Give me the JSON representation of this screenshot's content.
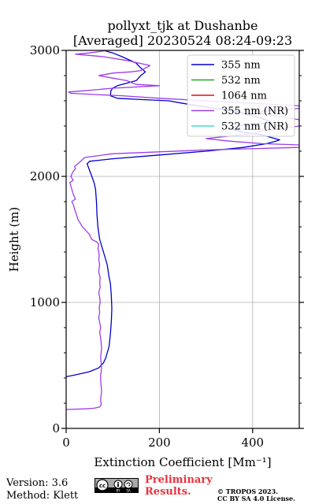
{
  "chart_data": {
    "type": "line",
    "title": "pollyxt_tjk at Dushanbe",
    "subtitle": "[Averaged] 20230524 08:24-09:23",
    "xlabel": "Extinction Coefficient [Mm⁻¹]",
    "ylabel": "Height (m)",
    "xlim": [
      0,
      500
    ],
    "ylim": [
      0,
      3000
    ],
    "xticks": [
      0,
      200,
      400
    ],
    "yticks": [
      0,
      1000,
      2000,
      3000
    ],
    "grid": true,
    "legend_position": "top-right",
    "series": [
      {
        "name": "355 nm",
        "color": "#0000cc",
        "points": [
          [
            0,
            410
          ],
          [
            20,
            425
          ],
          [
            50,
            450
          ],
          [
            70,
            480
          ],
          [
            80,
            520
          ],
          [
            85,
            560
          ],
          [
            88,
            600
          ],
          [
            92,
            650
          ],
          [
            95,
            750
          ],
          [
            97,
            850
          ],
          [
            98,
            950
          ],
          [
            97,
            1050
          ],
          [
            95,
            1150
          ],
          [
            92,
            1200
          ],
          [
            88,
            1300
          ],
          [
            80,
            1400
          ],
          [
            72,
            1500
          ],
          [
            68,
            1600
          ],
          [
            66,
            1700
          ],
          [
            65,
            1800
          ],
          [
            63,
            1900
          ],
          [
            60,
            1950
          ],
          [
            55,
            2000
          ],
          [
            50,
            2050
          ],
          [
            45,
            2100
          ],
          [
            50,
            2120
          ],
          [
            100,
            2140
          ],
          [
            200,
            2170
          ],
          [
            300,
            2200
          ],
          [
            380,
            2230
          ],
          [
            430,
            2260
          ],
          [
            450,
            2280
          ],
          [
            458,
            2290
          ],
          [
            420,
            2330
          ],
          [
            380,
            2350
          ],
          [
            350,
            2380
          ],
          [
            380,
            2410
          ],
          [
            420,
            2420
          ],
          [
            440,
            2430
          ],
          [
            420,
            2460
          ],
          [
            380,
            2500
          ],
          [
            360,
            2520
          ],
          [
            300,
            2550
          ],
          [
            250,
            2580
          ],
          [
            220,
            2600
          ],
          [
            160,
            2610
          ],
          [
            110,
            2620
          ],
          [
            95,
            2640
          ],
          [
            96,
            2680
          ],
          [
            100,
            2700
          ],
          [
            110,
            2720
          ],
          [
            130,
            2740
          ],
          [
            150,
            2760
          ],
          [
            160,
            2800
          ],
          [
            170,
            2830
          ],
          [
            160,
            2860
          ],
          [
            150,
            2900
          ],
          [
            120,
            2950
          ],
          [
            100,
            2980
          ],
          [
            80,
            3000
          ]
        ]
      },
      {
        "name": "532 nm",
        "color": "#22aa22",
        "points": []
      },
      {
        "name": "1064 nm",
        "color": "#dd1111",
        "points": []
      },
      {
        "name": "355 nm (NR)",
        "color": "#9d3de8",
        "points": [
          [
            0,
            150
          ],
          [
            40,
            155
          ],
          [
            60,
            160
          ],
          [
            72,
            170
          ],
          [
            75,
            185
          ],
          [
            75,
            200
          ],
          [
            74,
            220
          ],
          [
            74,
            240
          ],
          [
            75,
            260
          ],
          [
            76,
            300
          ],
          [
            75,
            340
          ],
          [
            74,
            380
          ],
          [
            74,
            420
          ],
          [
            75,
            450
          ],
          [
            76,
            480
          ],
          [
            75,
            520
          ],
          [
            74,
            560
          ],
          [
            75,
            600
          ],
          [
            76,
            640
          ],
          [
            75,
            680
          ],
          [
            74,
            720
          ],
          [
            72,
            760
          ],
          [
            74,
            800
          ],
          [
            72,
            840
          ],
          [
            70,
            880
          ],
          [
            72,
            920
          ],
          [
            71,
            960
          ],
          [
            73,
            1000
          ],
          [
            72,
            1040
          ],
          [
            70,
            1080
          ],
          [
            73,
            1120
          ],
          [
            72,
            1160
          ],
          [
            73,
            1200
          ],
          [
            70,
            1240
          ],
          [
            71,
            1280
          ],
          [
            72,
            1300
          ],
          [
            70,
            1340
          ],
          [
            71,
            1370
          ],
          [
            70,
            1400
          ],
          [
            68,
            1430
          ],
          [
            70,
            1460
          ],
          [
            66,
            1480
          ],
          [
            60,
            1490
          ],
          [
            55,
            1500
          ],
          [
            52,
            1520
          ],
          [
            50,
            1540
          ],
          [
            45,
            1560
          ],
          [
            40,
            1580
          ],
          [
            35,
            1600
          ],
          [
            30,
            1630
          ],
          [
            25,
            1660
          ],
          [
            22,
            1700
          ],
          [
            18,
            1740
          ],
          [
            15,
            1780
          ],
          [
            12,
            1800
          ],
          [
            20,
            1820
          ],
          [
            15,
            1860
          ],
          [
            12,
            1900
          ],
          [
            8,
            1950
          ],
          [
            15,
            1970
          ],
          [
            10,
            2000
          ],
          [
            15,
            2040
          ],
          [
            20,
            2060
          ],
          [
            18,
            2080
          ],
          [
            25,
            2100
          ],
          [
            40,
            2150
          ],
          [
            100,
            2180
          ],
          [
            300,
            2210
          ],
          [
            500,
            2230
          ],
          [
            500,
            2250
          ],
          [
            420,
            2260
          ],
          [
            350,
            2280
          ],
          [
            300,
            2300
          ],
          [
            350,
            2320
          ],
          [
            400,
            2340
          ],
          [
            420,
            2360
          ],
          [
            500,
            2400
          ],
          [
            500,
            2450
          ],
          [
            450,
            2480
          ],
          [
            400,
            2510
          ],
          [
            500,
            2540
          ],
          [
            500,
            2560
          ],
          [
            300,
            2600
          ],
          [
            200,
            2620
          ],
          [
            120,
            2640
          ],
          [
            60,
            2650
          ],
          [
            10,
            2660
          ],
          [
            5,
            2670
          ],
          [
            40,
            2680
          ],
          [
            100,
            2700
          ],
          [
            200,
            2720
          ],
          [
            150,
            2730
          ],
          [
            130,
            2760
          ],
          [
            100,
            2780
          ],
          [
            70,
            2800
          ],
          [
            100,
            2820
          ],
          [
            140,
            2830
          ],
          [
            160,
            2840
          ],
          [
            180,
            2880
          ],
          [
            130,
            2920
          ],
          [
            80,
            2950
          ],
          [
            20,
            2970
          ],
          [
            50,
            2980
          ],
          [
            70,
            2990
          ],
          [
            90,
            3000
          ]
        ]
      },
      {
        "name": "532 nm (NR)",
        "color": "#40e0c8",
        "points": []
      }
    ]
  },
  "footer": {
    "version": "Version: 3.6",
    "method": "Method: Klett",
    "preliminary_line1": "Preliminary",
    "preliminary_line2": "Results.",
    "copyright_line1": "© TROPOS 2023.",
    "copyright_line2": "CC BY SA 4.0 License.",
    "license_badge": "cc-by-sa-badge"
  }
}
